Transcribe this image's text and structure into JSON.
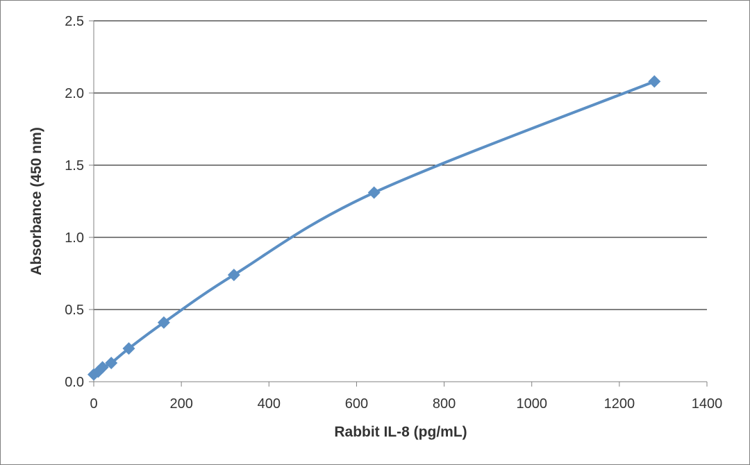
{
  "chart_data": {
    "type": "line",
    "title": "",
    "xlabel": "Rabbit IL-8 (pg/mL)",
    "ylabel": "Absorbance (450 nm)",
    "xlim": [
      0,
      1400
    ],
    "ylim": [
      0,
      2.5
    ],
    "x_ticks": [
      "0",
      "200",
      "400",
      "600",
      "800",
      "1000",
      "1200",
      "1400"
    ],
    "y_ticks": [
      "0.0",
      "0.5",
      "1.0",
      "1.5",
      "2.0",
      "2.5"
    ],
    "grid": "horizontal",
    "legend": "none",
    "line_color": "#5b8fc4",
    "series": [
      {
        "x": [
          0,
          10,
          20,
          40,
          80,
          160,
          320,
          640,
          1280
        ],
        "y": [
          0.05,
          0.07,
          0.1,
          0.13,
          0.23,
          0.41,
          0.74,
          1.31,
          2.08
        ]
      }
    ]
  }
}
